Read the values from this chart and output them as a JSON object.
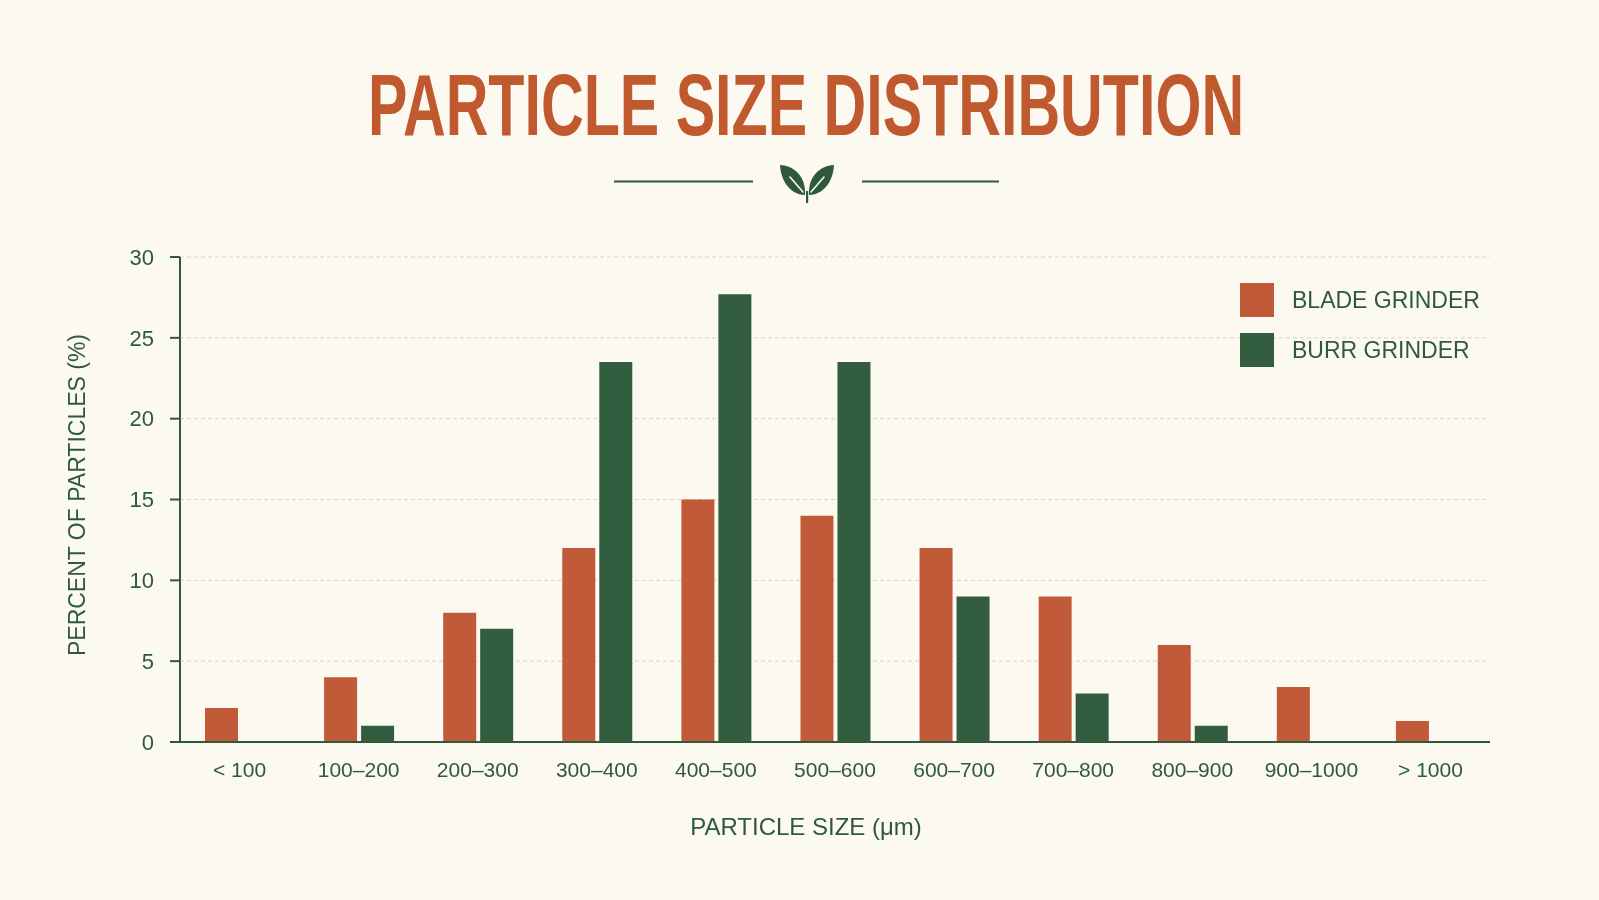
{
  "chart_data": {
    "type": "bar",
    "title": "PARTICLE SIZE DISTRIBUTION",
    "xlabel": "PARTICLE SIZE (μm)",
    "ylabel": "PERCENT OF PARTICLES (%)",
    "categories": [
      "< 100",
      "100–200",
      "200–300",
      "300–400",
      "400–500",
      "500–600",
      "600–700",
      "700–800",
      "800–900",
      "900–1000",
      "> 1000"
    ],
    "series": [
      {
        "name": "BLADE GRINDER",
        "color": "#c05a39",
        "values": [
          2.1,
          4,
          8,
          12,
          15,
          14,
          12,
          9,
          6,
          3.4,
          1.3
        ]
      },
      {
        "name": "BURR GRINDER",
        "color": "#325d3e",
        "values": [
          0,
          1,
          7,
          23.5,
          27.7,
          23.5,
          9,
          3,
          1,
          0,
          0
        ]
      }
    ],
    "ylim": [
      0,
      30
    ],
    "yticks": [
      0,
      5,
      10,
      15,
      20,
      25,
      30
    ],
    "grid": "y",
    "legend": "top right"
  }
}
